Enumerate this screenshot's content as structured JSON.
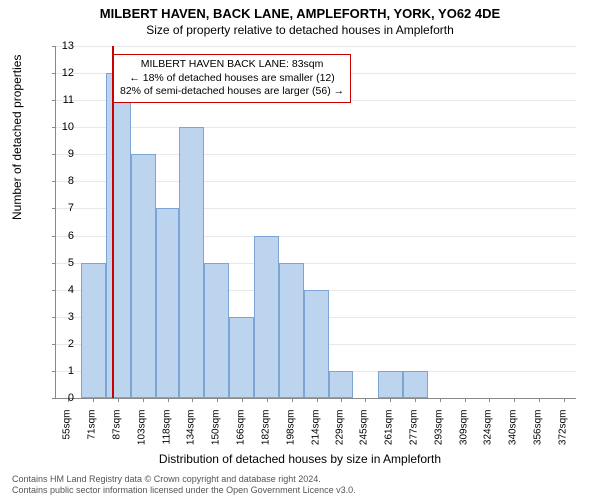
{
  "title_main": "MILBERT HAVEN, BACK LANE, AMPLEFORTH, YORK, YO62 4DE",
  "title_sub": "Size of property relative to detached houses in Ampleforth",
  "ylabel": "Number of detached properties",
  "xlabel": "Distribution of detached houses by size in Ampleforth",
  "chart": {
    "type": "histogram",
    "ylim": [
      0,
      13
    ],
    "ytick_step": 1,
    "bar_fill": "#bcd4ee",
    "bar_border": "#7da5d3",
    "grid_color": "#e8e8e8",
    "axis_color": "#888888",
    "background_color": "#ffffff",
    "marker_color": "#cc0000",
    "marker_x": 83,
    "x_range": [
      47,
      380
    ],
    "bars": [
      {
        "x0": 47,
        "x1": 63,
        "y": 0
      },
      {
        "x0": 63,
        "x1": 79,
        "y": 5
      },
      {
        "x0": 79,
        "x1": 95,
        "y": 12
      },
      {
        "x0": 95,
        "x1": 111,
        "y": 9
      },
      {
        "x0": 111,
        "x1": 126,
        "y": 7
      },
      {
        "x0": 126,
        "x1": 142,
        "y": 10
      },
      {
        "x0": 142,
        "x1": 158,
        "y": 5
      },
      {
        "x0": 158,
        "x1": 174,
        "y": 3
      },
      {
        "x0": 174,
        "x1": 190,
        "y": 6
      },
      {
        "x0": 190,
        "x1": 206,
        "y": 5
      },
      {
        "x0": 206,
        "x1": 222,
        "y": 4
      },
      {
        "x0": 222,
        "x1": 237,
        "y": 1
      },
      {
        "x0": 237,
        "x1": 253,
        "y": 0
      },
      {
        "x0": 253,
        "x1": 269,
        "y": 1
      },
      {
        "x0": 269,
        "x1": 285,
        "y": 1
      },
      {
        "x0": 285,
        "x1": 301,
        "y": 0
      },
      {
        "x0": 301,
        "x1": 317,
        "y": 0
      },
      {
        "x0": 317,
        "x1": 332,
        "y": 0
      },
      {
        "x0": 332,
        "x1": 348,
        "y": 0
      },
      {
        "x0": 348,
        "x1": 364,
        "y": 0
      },
      {
        "x0": 364,
        "x1": 380,
        "y": 0
      }
    ],
    "xticks": [
      "55sqm",
      "71sqm",
      "87sqm",
      "103sqm",
      "118sqm",
      "134sqm",
      "150sqm",
      "166sqm",
      "182sqm",
      "198sqm",
      "214sqm",
      "229sqm",
      "245sqm",
      "261sqm",
      "277sqm",
      "293sqm",
      "309sqm",
      "324sqm",
      "340sqm",
      "356sqm",
      "372sqm"
    ]
  },
  "callout": {
    "line1": "MILBERT HAVEN BACK LANE: 83sqm",
    "line2": "← 18% of detached houses are smaller (12)",
    "line3": "82% of semi-detached houses are larger (56) →"
  },
  "footer": {
    "line1": "Contains HM Land Registry data © Crown copyright and database right 2024.",
    "line2": "Contains public sector information licensed under the Open Government Licence v3.0."
  }
}
